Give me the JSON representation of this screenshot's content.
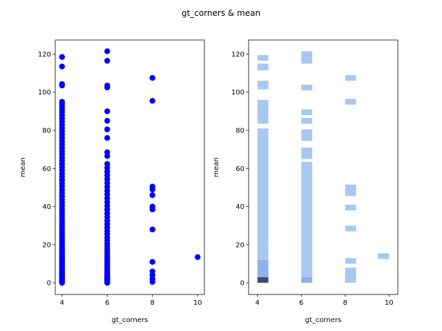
{
  "figure": {
    "title": "gt_corners & mean"
  },
  "chart_data": [
    {
      "type": "scatter",
      "xlabel": "gt_corners",
      "ylabel": "mean",
      "xlim": [
        3.7,
        10.3
      ],
      "ylim": [
        -6.1,
        127.4
      ],
      "xticks": [
        4,
        6,
        8,
        10
      ],
      "yticks": [
        0,
        20,
        40,
        60,
        80,
        100,
        120
      ],
      "color": "#0000ff",
      "points": {
        "x4": [
          0.0,
          0.2,
          0.4,
          0.6,
          0.8,
          1.0,
          1.3,
          1.6,
          2.0,
          2.4,
          2.8,
          3.2,
          3.7,
          4.2,
          4.7,
          5.3,
          5.9,
          6.5,
          7.2,
          7.9,
          8.6,
          9.4,
          10.2,
          11.0,
          11.9,
          12.8,
          13.7,
          14.7,
          15.7,
          16.8,
          17.9,
          19.0,
          20.2,
          21.4,
          22.7,
          24.0,
          25.3,
          26.7,
          28.1,
          29.5,
          31.0,
          32.5,
          34.0,
          35.6,
          37.2,
          38.8,
          40.4,
          42.0,
          43.7,
          45.4,
          47.1,
          48.8,
          50.5,
          52.2,
          53.9,
          55.6,
          57.3,
          59.0,
          60.7,
          62.4,
          64.1,
          65.8,
          67.5,
          69.2,
          70.9,
          72.6,
          74.3,
          76.0,
          77.7,
          79.4,
          81.1,
          82.8,
          84.5,
          86.2,
          87.9,
          89.5,
          91.0,
          92.5,
          94.0,
          95.0,
          103.5,
          104.3,
          113.5,
          118.5
        ],
        "x6": [
          0.0,
          0.3,
          0.6,
          1.0,
          1.5,
          2.0,
          2.6,
          3.3,
          4.0,
          4.8,
          5.7,
          6.6,
          7.6,
          8.7,
          9.8,
          11.0,
          12.2,
          13.5,
          14.8,
          16.2,
          17.6,
          19.1,
          20.6,
          22.2,
          23.8,
          25.5,
          27.2,
          29.0,
          30.8,
          32.6,
          34.5,
          36.4,
          38.4,
          40.4,
          42.4,
          44.4,
          46.4,
          48.4,
          50.4,
          52.4,
          54.4,
          56.4,
          58.4,
          60.4,
          62.4,
          66.5,
          68.5,
          76.0,
          80.5,
          85.0,
          90.0,
          102.5,
          103.5,
          116.5,
          121.5
        ],
        "x8": [
          0.5,
          2.0,
          4.0,
          6.0,
          11.0,
          28.0,
          38.5,
          40.0,
          46.0,
          49.0,
          50.5,
          95.5,
          107.5
        ],
        "x10": [
          13.5
        ]
      }
    },
    {
      "type": "heatmap",
      "xlabel": "gt_corners",
      "ylabel": "mean",
      "xlim": [
        3.6,
        10.4
      ],
      "ylim": [
        -6.1,
        127.4
      ],
      "xticks": [
        4,
        6,
        8,
        10
      ],
      "yticks": [
        0,
        20,
        40,
        60,
        80,
        100,
        120
      ],
      "colors": {
        "light": "#a8c8f0",
        "mid": "#8bb3ea",
        "dark": "#3a4f6e"
      },
      "cells": [
        {
          "x": [
            4.0,
            4.5
          ],
          "y": [
            0.0,
            3.0
          ],
          "level": "dark"
        },
        {
          "x": [
            4.0,
            4.5
          ],
          "y": [
            3.0,
            12.0
          ],
          "level": "mid"
        },
        {
          "x": [
            4.0,
            4.5
          ],
          "y": [
            12.0,
            20.0
          ],
          "level": "light"
        },
        {
          "x": [
            4.0,
            4.5
          ],
          "y": [
            20.0,
            81.0
          ],
          "level": "light"
        },
        {
          "x": [
            4.0,
            4.5
          ],
          "y": [
            83.5,
            96.0
          ],
          "level": "light"
        },
        {
          "x": [
            4.0,
            4.5
          ],
          "y": [
            101.5,
            106.0
          ],
          "level": "light"
        },
        {
          "x": [
            4.0,
            4.5
          ],
          "y": [
            111.5,
            115.0
          ],
          "level": "light"
        },
        {
          "x": [
            4.0,
            4.5
          ],
          "y": [
            116.5,
            119.5
          ],
          "level": "light"
        },
        {
          "x": [
            6.0,
            6.5
          ],
          "y": [
            0.0,
            3.0
          ],
          "level": "mid"
        },
        {
          "x": [
            6.0,
            6.5
          ],
          "y": [
            3.0,
            63.5
          ],
          "level": "light"
        },
        {
          "x": [
            6.0,
            6.5
          ],
          "y": [
            65.0,
            71.0
          ],
          "level": "light"
        },
        {
          "x": [
            6.0,
            6.5
          ],
          "y": [
            74.5,
            80.5
          ],
          "level": "light"
        },
        {
          "x": [
            6.0,
            6.5
          ],
          "y": [
            83.5,
            86.5
          ],
          "level": "light"
        },
        {
          "x": [
            6.0,
            6.5
          ],
          "y": [
            88.0,
            91.0
          ],
          "level": "light"
        },
        {
          "x": [
            6.0,
            6.5
          ],
          "y": [
            101.0,
            104.0
          ],
          "level": "light"
        },
        {
          "x": [
            6.0,
            6.5
          ],
          "y": [
            115.0,
            121.5
          ],
          "level": "light"
        },
        {
          "x": [
            8.0,
            8.5
          ],
          "y": [
            0.0,
            8.0
          ],
          "level": "light"
        },
        {
          "x": [
            8.0,
            8.5
          ],
          "y": [
            10.0,
            13.0
          ],
          "level": "light"
        },
        {
          "x": [
            8.0,
            8.5
          ],
          "y": [
            27.0,
            30.0
          ],
          "level": "light"
        },
        {
          "x": [
            8.0,
            8.5
          ],
          "y": [
            38.0,
            41.0
          ],
          "level": "light"
        },
        {
          "x": [
            8.0,
            8.5
          ],
          "y": [
            45.5,
            51.5
          ],
          "level": "light"
        },
        {
          "x": [
            8.0,
            8.5
          ],
          "y": [
            93.5,
            96.5
          ],
          "level": "light"
        },
        {
          "x": [
            8.0,
            8.5
          ],
          "y": [
            106.0,
            109.0
          ],
          "level": "light"
        },
        {
          "x": [
            9.5,
            10.0
          ],
          "y": [
            12.5,
            15.5
          ],
          "level": "light"
        }
      ]
    }
  ]
}
